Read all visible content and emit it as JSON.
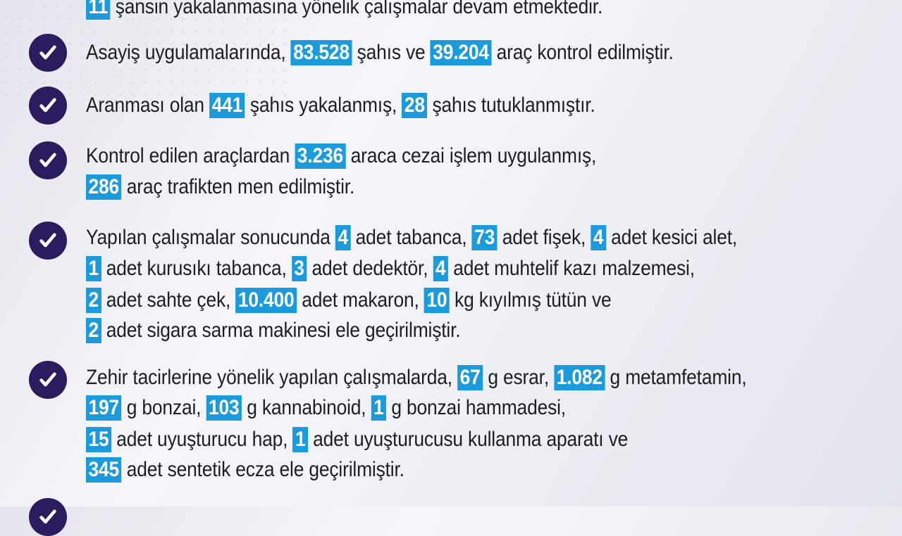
{
  "colors": {
    "highlight": "#1b9bdc",
    "check_circle": "#2d1b5f",
    "text": "#1d1d22"
  },
  "icon": "check-circle-icon",
  "items": [
    {
      "check": false,
      "lines": [
        [
          {
            "t": "11",
            "hl": true
          },
          {
            "t": " şansin yakalanmasına yönelik çalışmalar devam etmektedir."
          }
        ]
      ]
    },
    {
      "check": true,
      "lines": [
        [
          {
            "t": "Asayiş uygulamalarında, "
          },
          {
            "t": "83.528",
            "hl": true
          },
          {
            "t": " şahıs ve "
          },
          {
            "t": "39.204",
            "hl": true
          },
          {
            "t": " araç kontrol edilmiştir."
          }
        ]
      ]
    },
    {
      "check": true,
      "lines": [
        [
          {
            "t": "Aranması olan "
          },
          {
            "t": "441",
            "hl": true
          },
          {
            "t": " şahıs yakalanmış, "
          },
          {
            "t": "28",
            "hl": true
          },
          {
            "t": " şahıs tutuklanmıştır."
          }
        ]
      ]
    },
    {
      "check": true,
      "lines": [
        [
          {
            "t": "Kontrol edilen araçlardan "
          },
          {
            "t": "3.236",
            "hl": true
          },
          {
            "t": " araca cezai işlem uygulanmış,"
          }
        ],
        [
          {
            "t": "286",
            "hl": true
          },
          {
            "t": " araç trafikten men edilmiştir."
          }
        ]
      ]
    },
    {
      "check": true,
      "lines": [
        [
          {
            "t": "Yapılan çalışmalar sonucunda "
          },
          {
            "t": "4",
            "hl": true
          },
          {
            "t": " adet tabanca, "
          },
          {
            "t": "73",
            "hl": true
          },
          {
            "t": " adet fişek, "
          },
          {
            "t": "4",
            "hl": true
          },
          {
            "t": " adet kesici alet,"
          }
        ],
        [
          {
            "t": "1",
            "hl": true
          },
          {
            "t": " adet kurusıkı tabanca, "
          },
          {
            "t": "3",
            "hl": true
          },
          {
            "t": " adet dedektör, "
          },
          {
            "t": "4",
            "hl": true
          },
          {
            "t": " adet muhtelif kazı malzemesi,"
          }
        ],
        [
          {
            "t": "2",
            "hl": true
          },
          {
            "t": " adet sahte çek, "
          },
          {
            "t": "10.400",
            "hl": true
          },
          {
            "t": " adet makaron, "
          },
          {
            "t": "10",
            "hl": true
          },
          {
            "t": " kg kıyılmış tütün ve"
          }
        ],
        [
          {
            "t": "2",
            "hl": true
          },
          {
            "t": " adet sigara sarma makinesi ele geçirilmiştir."
          }
        ]
      ]
    },
    {
      "check": true,
      "lines": [
        [
          {
            "t": "Zehir tacirlerine yönelik yapılan çalışmalarda, "
          },
          {
            "t": "67",
            "hl": true
          },
          {
            "t": " g esrar, "
          },
          {
            "t": "1.082",
            "hl": true
          },
          {
            "t": " g metamfetamin,"
          }
        ],
        [
          {
            "t": "197",
            "hl": true
          },
          {
            "t": " g bonzai, "
          },
          {
            "t": "103",
            "hl": true
          },
          {
            "t": " g kannabinoid, "
          },
          {
            "t": "1",
            "hl": true
          },
          {
            "t": " g bonzai hammadesi,"
          }
        ],
        [
          {
            "t": "15",
            "hl": true
          },
          {
            "t": " adet uyuşturucu hap, "
          },
          {
            "t": "1",
            "hl": true
          },
          {
            "t": " adet uyuşturucusu kullanma aparatı ve"
          }
        ],
        [
          {
            "t": "345",
            "hl": true
          },
          {
            "t": " adet sentetik ecza ele geçirilmiştir."
          }
        ]
      ]
    },
    {
      "check": true,
      "lines": []
    }
  ]
}
